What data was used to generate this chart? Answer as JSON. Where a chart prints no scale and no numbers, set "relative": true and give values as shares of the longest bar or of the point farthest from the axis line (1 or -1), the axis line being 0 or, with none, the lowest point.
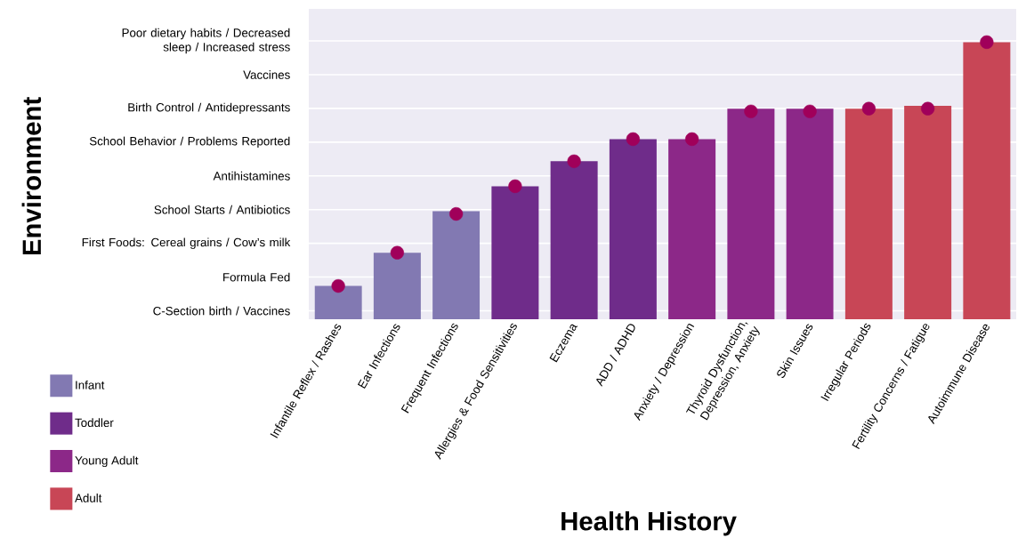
{
  "chart_data": {
    "type": "bar",
    "relative": true,
    "xlabel": "Health History",
    "categories": [
      "Infantile Reflex / Rashes",
      "Ear Infections",
      "Frequent Infections",
      "Allergies & Food Sensitivities",
      "Eczema",
      "ADD / ADHD",
      "Anxiety / Depression",
      "Thyroid Dysfunction, Depression, Anxiety",
      "Skin Issues",
      "Irregular Periods",
      "Fertility Concerns / Fatigue",
      "Autoimmune Disease"
    ],
    "series": [
      {
        "name": "Infant",
        "color": "#8279b2",
        "values": [
          0.12,
          0.24,
          0.39,
          null,
          null,
          null,
          null,
          null,
          null,
          null,
          null,
          null
        ]
      },
      {
        "name": "Toddler",
        "color": "#6f2c8a",
        "values": [
          null,
          null,
          null,
          0.48,
          0.57,
          0.65,
          null,
          null,
          null,
          null,
          null,
          null
        ]
      },
      {
        "name": "Young Adult",
        "color": "#8c2888",
        "values": [
          null,
          null,
          null,
          null,
          null,
          null,
          0.65,
          0.76,
          0.76,
          null,
          null,
          null
        ]
      },
      {
        "name": "Adult",
        "color": "#c84656",
        "values": [
          null,
          null,
          null,
          null,
          null,
          null,
          null,
          null,
          null,
          0.76,
          0.77,
          1
        ]
      },
      {
        "type": "scatter",
        "color": "#a0005a",
        "marker": "circle",
        "values": [
          0.12,
          0.24,
          0.38,
          0.48,
          0.57,
          0.65,
          0.65,
          0.75,
          0.75,
          0.76,
          0.76,
          1
        ]
      }
    ],
    "annotations": [
      "C-Section birth / Vaccines",
      "Formula Fed",
      "First Foods: Cereal grains / Cow’s milk",
      "School Starts / Antibiotics",
      "Antihistamines",
      "School Behavior / Problems Reported",
      "Birth Control / Antidepressants",
      "Vaccines",
      "Poor dietary habits / Decreased sleep / Increased stress",
      "Environment"
    ],
    "grid": "y",
    "legend": "bottom left"
  }
}
